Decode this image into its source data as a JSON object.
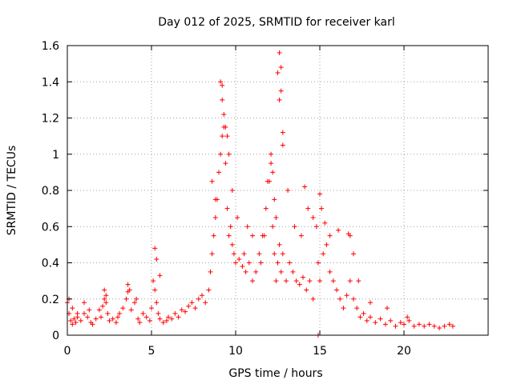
{
  "chart_data": {
    "type": "scatter",
    "title": "Day 012 of 2025, SRMTID for receiver karl",
    "xlabel": "GPS time / hours",
    "ylabel": "SRMTID / TECUs",
    "xlim": [
      0,
      25
    ],
    "ylim": [
      0,
      1.6
    ],
    "xticks": [
      0,
      5,
      10,
      15,
      20
    ],
    "yticks": [
      0,
      0.2,
      0.4,
      0.6,
      0.8,
      1,
      1.2,
      1.4,
      1.6
    ],
    "xtick_labels": [
      "0",
      "5",
      "10",
      "15",
      "20"
    ],
    "ytick_labels": [
      "0",
      "0.2",
      "0.4",
      "0.6",
      "0.8",
      "1",
      "1.2",
      "1.4",
      "1.6"
    ],
    "grid": true,
    "marker": "+",
    "color": "#ff0000",
    "series": [
      {
        "name": "SRMTID",
        "x": [
          0.0,
          0.1,
          0.2,
          0.3,
          0.4,
          0.5,
          0.6,
          0.8,
          1.0,
          1.2,
          1.4,
          1.5,
          1.7,
          1.9,
          2.0,
          2.1,
          2.2,
          2.3,
          2.4,
          2.5,
          2.7,
          2.9,
          3.0,
          3.1,
          3.3,
          3.5,
          3.6,
          3.8,
          4.0,
          4.2,
          4.3,
          4.5,
          4.7,
          4.9,
          5.0,
          5.1,
          5.2,
          5.3,
          5.4,
          5.5,
          5.7,
          5.9,
          6.0,
          6.2,
          6.4,
          6.6,
          6.8,
          7.0,
          7.2,
          7.4,
          7.6,
          7.8,
          8.0,
          8.2,
          8.4,
          8.5,
          8.6,
          8.7,
          8.8,
          8.9,
          9.0,
          9.1,
          9.2,
          9.3,
          9.4,
          9.5,
          9.6,
          9.7,
          9.8,
          9.9,
          10.0,
          10.2,
          10.4,
          10.5,
          10.6,
          10.8,
          11.0,
          11.2,
          11.4,
          11.6,
          11.8,
          12.0,
          12.1,
          12.2,
          12.3,
          12.4,
          12.5,
          12.6,
          12.7,
          12.8,
          13.0,
          13.2,
          13.4,
          13.6,
          13.8,
          14.0,
          14.2,
          14.4,
          14.6,
          14.8,
          14.9,
          15.0,
          15.2,
          15.4,
          15.6,
          15.8,
          16.0,
          16.2,
          16.4,
          16.6,
          16.8,
          17.0,
          17.2,
          17.4,
          17.6,
          17.8,
          18.0,
          18.3,
          18.6,
          18.9,
          19.2,
          19.5,
          19.8,
          20.0,
          20.3,
          20.6,
          20.9,
          21.2,
          21.5,
          21.8,
          22.1,
          22.4,
          22.7,
          22.9,
          0.1,
          0.3,
          0.6,
          1.0,
          1.3,
          2.2,
          2.3,
          3.6,
          3.7,
          4.1,
          5.2,
          5.3,
          5.5,
          8.6,
          8.8,
          9.1,
          9.2,
          9.2,
          9.3,
          9.4,
          9.5,
          9.6,
          9.8,
          10.1,
          10.7,
          11.0,
          11.5,
          11.7,
          11.9,
          12.1,
          12.2,
          12.3,
          12.4,
          12.5,
          12.6,
          12.6,
          12.7,
          12.7,
          12.8,
          12.8,
          13.1,
          13.5,
          13.9,
          14.1,
          14.3,
          14.6,
          14.9,
          15.0,
          15.1,
          15.3,
          15.6,
          16.1,
          16.7,
          16.8,
          17.0,
          17.3,
          18.0,
          19.0,
          20.2
        ],
        "y": [
          0.18,
          0.12,
          0.08,
          0.06,
          0.09,
          0.07,
          0.1,
          0.08,
          0.12,
          0.1,
          0.07,
          0.06,
          0.09,
          0.14,
          0.1,
          0.16,
          0.2,
          0.18,
          0.12,
          0.08,
          0.09,
          0.07,
          0.1,
          0.12,
          0.15,
          0.2,
          0.24,
          0.14,
          0.18,
          0.09,
          0.07,
          0.12,
          0.1,
          0.08,
          0.15,
          0.3,
          0.25,
          0.18,
          0.12,
          0.09,
          0.07,
          0.08,
          0.1,
          0.09,
          0.12,
          0.1,
          0.14,
          0.13,
          0.16,
          0.18,
          0.15,
          0.2,
          0.22,
          0.18,
          0.25,
          0.35,
          0.45,
          0.55,
          0.65,
          0.75,
          0.9,
          1.0,
          1.1,
          1.15,
          0.95,
          0.7,
          0.55,
          0.6,
          0.5,
          0.45,
          0.4,
          0.42,
          0.38,
          0.45,
          0.35,
          0.4,
          0.3,
          0.35,
          0.45,
          0.55,
          0.7,
          0.85,
          0.95,
          0.6,
          0.45,
          0.3,
          0.4,
          0.5,
          0.35,
          0.45,
          0.3,
          0.4,
          0.35,
          0.3,
          0.28,
          0.32,
          0.25,
          0.3,
          0.2,
          0.6,
          0.4,
          0.3,
          0.45,
          0.5,
          0.35,
          0.3,
          0.25,
          0.2,
          0.15,
          0.22,
          0.3,
          0.2,
          0.15,
          0.1,
          0.12,
          0.08,
          0.1,
          0.07,
          0.09,
          0.06,
          0.08,
          0.05,
          0.07,
          0.06,
          0.08,
          0.05,
          0.06,
          0.05,
          0.06,
          0.05,
          0.04,
          0.05,
          0.06,
          0.05,
          0.2,
          0.15,
          0.12,
          0.18,
          0.14,
          0.25,
          0.22,
          0.28,
          0.25,
          0.2,
          0.48,
          0.42,
          0.33,
          0.85,
          0.75,
          1.4,
          1.38,
          1.3,
          1.22,
          1.15,
          1.1,
          1.0,
          0.8,
          0.65,
          0.6,
          0.55,
          0.4,
          0.55,
          0.85,
          1.0,
          0.9,
          0.75,
          0.65,
          1.45,
          1.56,
          1.3,
          1.48,
          1.35,
          1.12,
          1.05,
          0.8,
          0.6,
          0.55,
          0.82,
          0.7,
          0.65,
          0.0,
          0.78,
          0.7,
          0.62,
          0.55,
          0.58,
          0.56,
          0.55,
          0.45,
          0.3,
          0.18,
          0.15,
          0.1
        ]
      }
    ]
  }
}
